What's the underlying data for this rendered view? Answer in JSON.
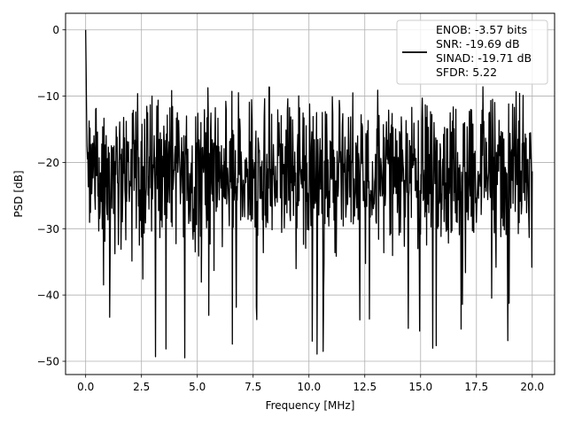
{
  "chart_data": {
    "type": "line",
    "title": "",
    "xlabel": "Frequency [MHz]",
    "ylabel": "PSD [dB]",
    "xlim": [
      -0.9,
      21.0
    ],
    "ylim": [
      -52,
      2.5
    ],
    "xticks": [
      0.0,
      2.5,
      5.0,
      7.5,
      10.0,
      12.5,
      15.0,
      17.5,
      20.0
    ],
    "xtick_labels": [
      "0.0",
      "2.5",
      "5.0",
      "7.5",
      "10.0",
      "12.5",
      "15.0",
      "17.5",
      "20.0"
    ],
    "yticks": [
      0,
      -10,
      -20,
      -30,
      -40,
      -50
    ],
    "ytick_labels": [
      "0",
      "−10",
      "−20",
      "−30",
      "−40",
      "−50"
    ],
    "grid": true,
    "legend_position": "top-right",
    "series": [
      {
        "color": "#000000",
        "x_range": [
          0.0,
          20.0
        ],
        "n_points": 1024,
        "peak": {
          "x": 0.0,
          "y": 0.0
        },
        "noise_floor_mean": -21,
        "noise_band": [
          -35,
          -11
        ],
        "approx_y": [
          0.0,
          -5.5,
          -12.0,
          -17.5,
          -23.0,
          -34.3,
          -15.2,
          -30.1,
          -12.4,
          -33.0,
          -18.7,
          -38.5,
          -14.2,
          -25.6,
          -44.8,
          -16.3,
          -29.4,
          -13.5,
          -31.2,
          -20.9,
          -15.6,
          -28.3,
          -33.5,
          -17.1,
          -24.7,
          -14.8,
          -30.6,
          -19.4,
          -12.9,
          -27.8,
          -47.2,
          -16.9,
          -22.3,
          -35.4,
          -13.7,
          -26.5,
          -42.1,
          -18.2,
          -29.8,
          -15.3,
          -21.6,
          -37.2,
          -12.5,
          -25.3,
          -31.8,
          -16.7,
          -28.1,
          -14.1,
          -23.9,
          -33.2,
          -11.4,
          -27.2,
          -19.8,
          -36.5,
          -13.2,
          -24.1,
          -42.5,
          -17.6,
          -30.3,
          -9.8,
          -21.2,
          -34.9,
          -15.1,
          -26.8,
          -31.4,
          -12.1,
          -23.3,
          -38.2,
          -16.2,
          -28.6
        ]
      }
    ],
    "legend": {
      "lines": [
        "ENOB: -3.57 bits",
        "SNR: -19.69 dB",
        "SINAD: -19.71 dB",
        "SFDR: 5.22"
      ]
    }
  }
}
